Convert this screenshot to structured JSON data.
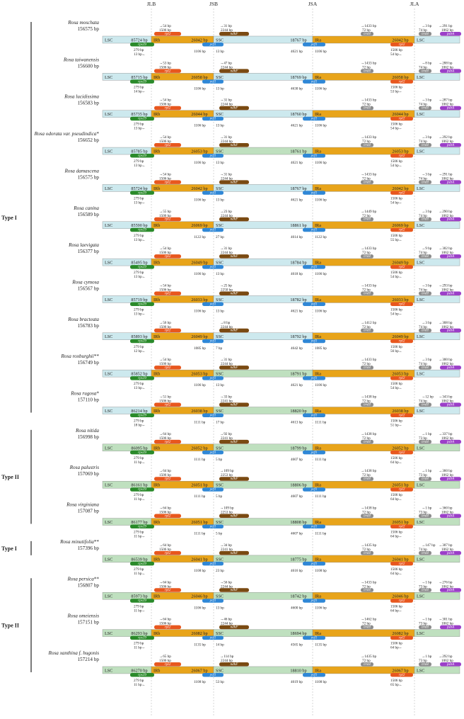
{
  "junction_labels": [
    "JLB",
    "JSB",
    "JSA",
    "JLA"
  ],
  "region_labels": [
    "LSC",
    "IRb",
    "SSC",
    "IRa",
    "LSC"
  ],
  "gene_names": {
    "rps19": "rps19",
    "rpl2": "rpl2",
    "ycf1": "ycf1",
    "ndhF": "ndhF",
    "trnH": "trnH",
    "psbA": "psbA"
  },
  "colors": {
    "lsc": "#cde9ee",
    "ssc_a": "#bfe0bf",
    "ir": "#e8a41a",
    "rps19": "#2a8a2a",
    "rpl2": "#e8571e",
    "ycf1": "#2f87d6",
    "ndhF": "#7a4a12",
    "trnH": "#8c8c8c",
    "psbA": "#9b3fc8"
  },
  "groups": [
    {
      "label": "Type I",
      "from": 0,
      "to": 10
    },
    {
      "label": "Type II",
      "from": 11,
      "to": 13
    },
    {
      "label": "Type I",
      "from": 14,
      "to": 14
    },
    {
      "label": "Type II",
      "from": 15,
      "to": 17
    }
  ],
  "species": [
    {
      "name": "Rosa moschata",
      "mark": "",
      "total": "156575 bp",
      "lsc": "85724 bp",
      "irb": "26042 bp",
      "ssc": "18767 bp",
      "ira": "26042 bp",
      "rpl2_l": "54 bp",
      "rpl2_len": "1506 bp",
      "ndhF_l": "31 bp",
      "ndhF_len": "2244 bp",
      "trnH_r": "1433 bp",
      "trnH_b": "72 bp",
      "jla_r": "3 bp",
      "psbA_r": "291 bp",
      "trnH2_l": "74 bp",
      "psbA_len": "1062 bp",
      "rps19_l": "279 bp",
      "rps19_r": "13 bp",
      "ycf1_l": "1106 bp",
      "ycf1_r": "13 bp",
      "ycf1a_l": "4621 bp",
      "ycf1a_r": "1106 bp",
      "rpl2b_len": "1506 bp",
      "rpl2b_r": "54 bp"
    },
    {
      "name": "Rosa taiwanensis",
      "mark": "",
      "total": "156600 bp",
      "lsc": "85715 bp",
      "irb": "26058 bp",
      "ssc": "18769 bp",
      "ira": "26058 bp",
      "rpl2_l": "53 bp",
      "rpl2_len": "1506 bp",
      "ndhF_l": "47 bp",
      "ndhF_len": "2244 bp",
      "trnH_r": "1433 bp",
      "trnH_b": "72 bp",
      "jla_r": "8 bp",
      "psbA_r": "288 bp",
      "trnH2_l": "74 bp",
      "psbA_len": "1062 bp",
      "rps19_l": "279 bp",
      "rps19_r": "14 bp",
      "ycf1_l": "1106 bp",
      "ycf1_r": "13 bp",
      "ycf1a_l": "4630 bp",
      "ycf1a_r": "1106 bp",
      "rpl2b_len": "1506 bp",
      "rpl2b_r": "53 bp"
    },
    {
      "name": "Rosa lucidissima",
      "mark": "",
      "total": "156583 bp",
      "lsc": "85735 bp",
      "irb": "26044 bp",
      "ssc": "18760 bp",
      "ira": "26044 bp",
      "rpl2_l": "54 bp",
      "rpl2_len": "1506 bp",
      "ndhF_l": "31 bp",
      "ndhF_len": "2244 bp",
      "trnH_r": "1433 bp",
      "trnH_b": "72 bp",
      "jla_r": "3 bp",
      "psbA_r": "287 bp",
      "trnH2_l": "74 bp",
      "psbA_len": "1062 bp",
      "rps19_l": "279 bp",
      "rps19_r": "13 bp",
      "ycf1_l": "1106 bp",
      "ycf1_r": "13 bp",
      "ycf1a_l": "4621 bp",
      "ycf1a_r": "1106 bp",
      "rpl2b_len": "1506 bp",
      "rpl2b_r": "54 bp"
    },
    {
      "name": "Rosa odorata var. pseudindica",
      "mark": "*",
      "total": "156652 bp",
      "lsc": "85785 bp",
      "irb": "26053 bp",
      "ssc": "18761 bp",
      "ira": "26053 bp",
      "rpl2_l": "54 bp",
      "rpl2_len": "1506 bp",
      "ndhF_l": "31 bp",
      "ndhF_len": "2244 bp",
      "trnH_r": "1433 bp",
      "trnH_b": "72 bp",
      "jla_r": "3 bp",
      "psbA_r": "292 bp",
      "trnH2_l": "74 bp",
      "psbA_len": "1062 bp",
      "rps19_l": "279 bp",
      "rps19_r": "13 bp",
      "ycf1_l": "1106 bp",
      "ycf1_r": "13 bp",
      "ycf1a_l": "4621 bp",
      "ycf1a_r": "1106 bp",
      "rpl2b_len": "1506 bp",
      "rpl2b_r": "54 bp"
    },
    {
      "name": "Rosa damascena",
      "mark": "",
      "total": "156575 bp",
      "lsc": "85724 bp",
      "irb": "26042 bp",
      "ssc": "18767 bp",
      "ira": "26042 bp",
      "rpl2_l": "54 bp",
      "rpl2_len": "1506 bp",
      "ndhF_l": "31 bp",
      "ndhF_len": "2244 bp",
      "trnH_r": "1433 bp",
      "trnH_b": "72 bp",
      "jla_r": "3 bp",
      "psbA_r": "291 bp",
      "trnH2_l": "74 bp",
      "psbA_len": "1062 bp",
      "rps19_l": "279 bp",
      "rps19_r": "13 bp",
      "ycf1_l": "1106 bp",
      "ycf1_r": "13 bp",
      "ycf1a_l": "4621 bp",
      "ycf1a_r": "1106 bp",
      "rpl2b_len": "1506 bp",
      "rpl2b_r": "54 bp"
    },
    {
      "name": "Rosa canina",
      "mark": "",
      "total": "156589 bp",
      "lsc": "85590 bp",
      "irb": "26069 bp",
      "ssc": "18861 bp",
      "ira": "26069 bp",
      "rpl2_l": "55 bp",
      "rpl2_len": "1506 bp",
      "ndhF_l": "23 bp",
      "ndhF_len": "2244 bp",
      "trnH_r": "1449 bp",
      "trnH_b": "72 bp",
      "jla_r": "3 bp",
      "psbA_r": "290 bp",
      "trnH2_l": "74 bp",
      "psbA_len": "1062 bp",
      "rps19_l": "279 bp",
      "rps19_r": "13 bp",
      "ycf1_l": "1122 bp",
      "ycf1_r": "27 bp",
      "ycf1a_l": "4614 bp",
      "ycf1a_r": "1122 bp",
      "rpl2b_len": "1506 bp",
      "rpl2b_r": "55 bp"
    },
    {
      "name": "Rosa laevigata",
      "mark": "",
      "total": "156377 bp",
      "lsc": "85495 bp",
      "irb": "26049 bp",
      "ssc": "18784 bp",
      "ira": "26049 bp",
      "rpl2_l": "54 bp",
      "rpl2_len": "1506 bp",
      "ndhF_l": "31 bp",
      "ndhF_len": "2244 bp",
      "trnH_r": "1433 bp",
      "trnH_b": "72 bp",
      "jla_r": "9 bp",
      "psbA_r": "302 bp",
      "trnH2_l": "74 bp",
      "psbA_len": "1062 bp",
      "rps19_l": "279 bp",
      "rps19_r": "13 bp",
      "ycf1_l": "1106 bp",
      "ycf1_r": "13 bp",
      "ycf1a_l": "4618 bp",
      "ycf1a_r": "1106 bp",
      "rpl2b_len": "1506 bp",
      "rpl2b_r": "54 bp"
    },
    {
      "name": "Rosa cymosa",
      "mark": "",
      "total": "156567 bp",
      "lsc": "85719 bp",
      "irb": "26033 bp",
      "ssc": "18782 bp",
      "ira": "26033 bp",
      "rpl2_l": "54 bp",
      "rpl2_len": "1506 bp",
      "ndhF_l": "25 bp",
      "ndhF_len": "2250 bp",
      "trnH_r": "1433 bp",
      "trnH_b": "72 bp",
      "jla_r": "3 bp",
      "psbA_r": "293 bp",
      "trnH2_l": "74 bp",
      "psbA_len": "1062 bp",
      "rps19_l": "279 bp",
      "rps19_r": "13 bp",
      "ycf1_l": "1106 bp",
      "ycf1_r": "13 bp",
      "ycf1a_l": "4621 bp",
      "ycf1a_r": "1106 bp",
      "rpl2b_len": "1506 bp",
      "rpl2b_r": "54 bp"
    },
    {
      "name": "Rosa bracteata",
      "mark": "",
      "total": "156783 bp",
      "lsc": "85893 bp",
      "irb": "26049 bp",
      "ssc": "18792 bp",
      "ira": "26049 bp",
      "rpl2_l": "56 bp",
      "rpl2_len": "1506 bp",
      "ndhF_l": "8 bp",
      "ndhF_len": "2244 bp",
      "trnH_r": "1412 bp",
      "trnH_b": "72 bp",
      "jla_r": "3 bp",
      "psbA_r": "308 bp",
      "trnH2_l": "74 bp",
      "psbA_len": "1062 bp",
      "rps19_l": "279 bp",
      "rps19_r": "12 bp",
      "ycf1_l": "1085 bp",
      "ycf1_r": "7 bp",
      "ycf1a_l": "4642 bp",
      "ycf1a_r": "1085 bp",
      "rpl2b_len": "1506 bp",
      "rpl2b_r": "56 bp"
    },
    {
      "name": "Rosa roxburghii",
      "mark": "**",
      "total": "156749 bp",
      "lsc": "85852 bp",
      "irb": "26053 bp",
      "ssc": "18791 bp",
      "ira": "26053 bp",
      "rpl2_l": "54 bp",
      "rpl2_len": "1506 bp",
      "ndhF_l": "31 bp",
      "ndhF_len": "2244 bp",
      "trnH_r": "1433 bp",
      "trnH_b": "72 bp",
      "jla_r": "3 bp",
      "psbA_r": "300 bp",
      "trnH2_l": "74 bp",
      "psbA_len": "1062 bp",
      "rps19_l": "279 bp",
      "rps19_r": "13 bp",
      "ycf1_l": "1106 bp",
      "ycf1_r": "13 bp",
      "ycf1a_l": "4621 bp",
      "ycf1a_r": "1106 bp",
      "rpl2b_len": "1506 bp",
      "rpl2b_r": "54 bp"
    },
    {
      "name": "Rosa rugosa",
      "mark": "*",
      "total": "157110 bp",
      "lsc": "86214 bp",
      "irb": "26038 bp",
      "ssc": "18820 bp",
      "ira": "26038 bp",
      "rpl2_l": "51 bp",
      "rpl2_len": "1506 bp",
      "ndhF_l": "33 bp",
      "ndhF_len": "2241 bp",
      "trnH_r": "1438 bp",
      "trnH_b": "72 bp",
      "jla_r": "12 bp",
      "psbA_r": "343 bp",
      "trnH2_l": "74 bp",
      "psbA_len": "1062 bp",
      "rps19_l": "279 bp",
      "rps19_r": "18 bp",
      "ycf1_l": "1111 bp",
      "ycf1_r": "17 bp",
      "ycf1a_l": "4613 bp",
      "ycf1a_r": "1111 bp",
      "rpl2b_len": "1506 bp",
      "rpl2b_r": "51 bp"
    },
    {
      "name": "Rosa nitida",
      "mark": "",
      "total": "156998 bp",
      "lsc": "86095 bp",
      "irb": "26052 bp",
      "ssc": "18799 bp",
      "ira": "26052 bp",
      "rpl2_l": "64 bp",
      "rpl2_len": "1506 bp",
      "ndhF_l": "92 bp",
      "ndhF_len": "2241 bp",
      "trnH_r": "1438 bp",
      "trnH_b": "72 bp",
      "jla_r": "1 bp",
      "psbA_r": "337 bp",
      "trnH2_l": "73 bp",
      "psbA_len": "1062 bp",
      "rps19_l": "279 bp",
      "rps19_r": "11 bp",
      "ycf1_l": "1111 bp",
      "ycf1_r": "5 bp",
      "ycf1a_l": "4607 bp",
      "ycf1a_r": "1111 bp",
      "rpl2b_len": "1506 bp",
      "rpl2b_r": "64 bp"
    },
    {
      "name": "Rosa palustris",
      "mark": "",
      "total": "157069 bp",
      "lsc": "86161 bp",
      "irb": "26051 bp",
      "ssc": "18806 bp",
      "ira": "26051 bp",
      "rpl2_l": "64 bp",
      "rpl2_len": "1506 bp",
      "ndhF_l": "109 bp",
      "ndhF_len": "2253 bp",
      "trnH_r": "1438 bp",
      "trnH_b": "72 bp",
      "jla_r": "1 bp",
      "psbA_r": "360 bp",
      "trnH2_l": "73 bp",
      "psbA_len": "1062 bp",
      "rps19_l": "279 bp",
      "rps19_r": "11 bp",
      "ycf1_l": "1111 bp",
      "ycf1_r": "5 bp",
      "ycf1a_l": "4607 bp",
      "ycf1a_r": "1111 bp",
      "rpl2b_len": "1506 bp",
      "rpl2b_r": "64 bp"
    },
    {
      "name": "Rosa virginiana",
      "mark": "",
      "total": "157087 bp",
      "lsc": "86177 bp",
      "irb": "26051 bp",
      "ssc": "18808 bp",
      "ira": "26051 bp",
      "rpl2_l": "64 bp",
      "rpl2_len": "1506 bp",
      "ndhF_l": "109 bp",
      "ndhF_len": "2253 bp",
      "trnH_r": "1438 bp",
      "trnH_b": "72 bp",
      "jla_r": "1 bp",
      "psbA_r": "360 bp",
      "trnH2_l": "73 bp",
      "psbA_len": "1062 bp",
      "rps19_l": "279 bp",
      "rps19_r": "11 bp",
      "ycf1_l": "1111 bp",
      "ycf1_r": "5 bp",
      "ycf1a_l": "4607 bp",
      "ycf1a_r": "1111 bp",
      "rpl2b_len": "1506 bp",
      "rpl2b_r": "64 bp"
    },
    {
      "name": "Rosa minutifolia",
      "mark": "**",
      "total": "157396 bp",
      "lsc": "86539 bp",
      "irb": "26041 bp",
      "ssc": "18775 bp",
      "ira": "26041 bp",
      "rpl2_l": "64 bp",
      "rpl2_len": "1506 bp",
      "ndhF_l": "34 bp",
      "ndhF_len": "2241 bp",
      "trnH_r": "1435 bp",
      "trnH_b": "72 bp",
      "jla_r": "147 bp",
      "psbA_r": "307 bp",
      "trnH2_l": "74 bp",
      "psbA_len": "1062 bp",
      "rps19_l": "279 bp",
      "rps19_r": "11 bp",
      "ycf1_l": "1108 bp",
      "ycf1_r": "23 bp",
      "ycf1a_l": "4616 bp",
      "ycf1a_r": "1108 bp",
      "rpl2b_len": "1506 bp",
      "rpl2b_r": "64 bp"
    },
    {
      "name": "Rosa persica",
      "mark": "**",
      "total": "156807 bp",
      "lsc": "85973 bp",
      "irb": "26046 bp",
      "ssc": "18742 bp",
      "ira": "26046 bp",
      "rpl2_l": "64 bp",
      "rpl2_len": "1506 bp",
      "ndhF_l": "56 bp",
      "ndhF_len": "2244 bp",
      "trnH_r": "1433 bp",
      "trnH_b": "72 bp",
      "jla_r": "1 bp",
      "psbA_r": "276 bp",
      "trnH2_l": "73 bp",
      "psbA_len": "1062 bp",
      "rps19_l": "279 bp",
      "rps19_r": "11 bp",
      "ycf1_l": "1106 bp",
      "ycf1_r": "13 bp",
      "ycf1a_l": "4600 bp",
      "ycf1a_r": "1106 bp",
      "rpl2b_len": "1506 bp",
      "rpl2b_r": "64 bp"
    },
    {
      "name": "Rosa omeiensis",
      "mark": "",
      "total": "157151 bp",
      "lsc": "86293 bp",
      "irb": "26082 bp",
      "ssc": "18694 bp",
      "ira": "26082 bp",
      "rpl2_l": "64 bp",
      "rpl2_len": "1506 bp",
      "ndhF_l": "46 bp",
      "ndhF_len": "2244 bp",
      "trnH_r": "1462 bp",
      "trnH_b": "72 bp",
      "jla_r": "1 bp",
      "psbA_r": "301 bp",
      "trnH2_l": "73 bp",
      "psbA_len": "1062 bp",
      "rps19_l": "279 bp",
      "rps19_r": "11 bp",
      "ycf1_l": "1135 bp",
      "ycf1_r": "14 bp",
      "ycf1a_l": "4565 bp",
      "ycf1a_r": "1135 bp",
      "rpl2b_len": "1506 bp",
      "rpl2b_r": "64 bp"
    },
    {
      "name": "Rosa xanthina f. hugonis",
      "mark": "",
      "total": "157214 bp",
      "lsc": "86270 bp",
      "irb": "26067 bp",
      "ssc": "18810 bp",
      "ira": "26067 bp",
      "rpl2_l": "65 bp",
      "rpl2_len": "1506 bp",
      "ndhF_l": "114 bp",
      "ndhF_len": "2244 bp",
      "trnH_r": "1435 bp",
      "trnH_b": "72 bp",
      "jla_r": "1 bp",
      "psbA_r": "292 bp",
      "trnH2_l": "73 bp",
      "psbA_len": "1062 bp",
      "rps19_l": "279 bp",
      "rps19_r": "11 bp",
      "ycf1_l": "1108 bp",
      "ycf1_r": "53 bp",
      "ycf1a_l": "4619 bp",
      "ycf1a_r": "1108 bp",
      "rpl2b_len": "1506 bp",
      "rpl2b_r": "65 bp"
    }
  ]
}
